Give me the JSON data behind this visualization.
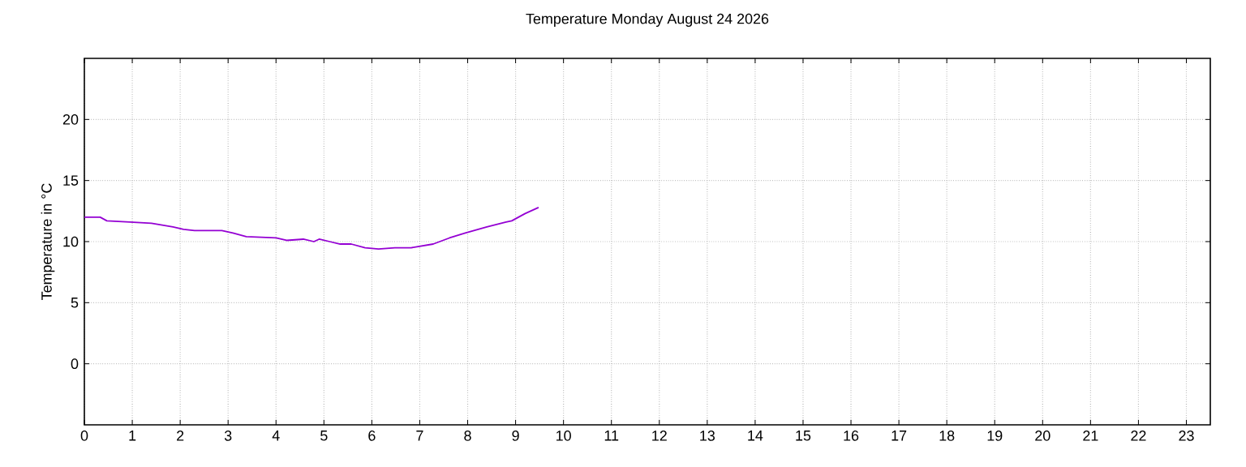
{
  "chart_data": {
    "type": "line",
    "title": "Temperature Monday August 24 2026",
    "ylabel": "Temperature in °C",
    "x": [
      0,
      0.33,
      0.47,
      0.95,
      1.4,
      1.85,
      2.07,
      2.3,
      2.87,
      3.1,
      3.38,
      4.0,
      4.22,
      4.57,
      4.79,
      4.9,
      5.12,
      5.34,
      5.57,
      5.86,
      6.14,
      6.48,
      6.82,
      7.28,
      7.62,
      7.95,
      8.4,
      8.8,
      8.92,
      9.2,
      9.48
    ],
    "series": [
      {
        "color": "#9400d3",
        "values": [
          12.0,
          12.0,
          11.7,
          11.6,
          11.5,
          11.2,
          11.0,
          10.9,
          10.9,
          10.7,
          10.4,
          10.3,
          10.1,
          10.2,
          10.0,
          10.2,
          10.0,
          9.8,
          9.8,
          9.5,
          9.4,
          9.5,
          9.5,
          9.8,
          10.3,
          10.7,
          11.2,
          11.6,
          11.7,
          12.3,
          12.8
        ]
      }
    ],
    "xlim": [
      0,
      23.5
    ],
    "xticks": [
      0,
      1,
      2,
      3,
      4,
      5,
      6,
      7,
      8,
      9,
      10,
      11,
      12,
      13,
      14,
      15,
      16,
      17,
      18,
      19,
      20,
      21,
      22,
      23
    ],
    "ylim": [
      -5,
      25
    ],
    "yticks": [
      0,
      5,
      10,
      15,
      20
    ],
    "grid": true,
    "marker": "none",
    "line_style": "solid"
  }
}
